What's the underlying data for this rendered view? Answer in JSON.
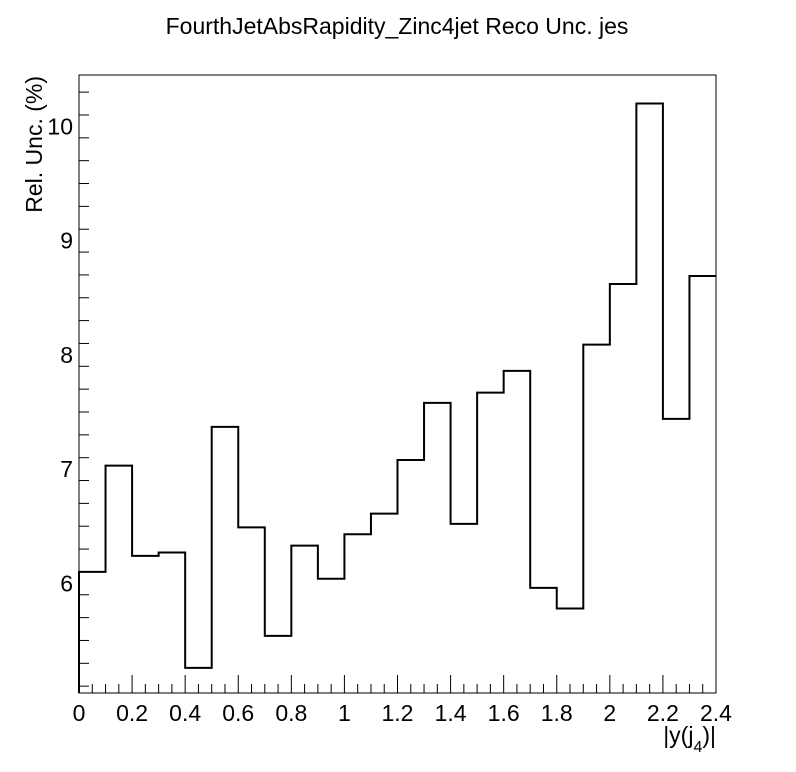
{
  "chart_data": {
    "type": "step-histogram",
    "title": "FourthJetAbsRapidity_Zinc4jet Reco Unc. jes",
    "xlabel": "|y(j4)|",
    "xlabel_parts": {
      "before": "|y(j",
      "sub": "4",
      "after": ")|"
    },
    "ylabel": "Rel. Unc. (%)",
    "xlim": [
      0,
      2.4
    ],
    "ylim": [
      5.04,
      10.45
    ],
    "x_ticks": [
      0,
      0.2,
      0.4,
      0.6,
      0.8,
      1,
      1.2,
      1.4,
      1.6,
      1.8,
      2,
      2.2,
      2.4
    ],
    "x_tick_labels": [
      "0",
      "0.2",
      "0.4",
      "0.6",
      "0.8",
      "1",
      "1.2",
      "1.4",
      "1.6",
      "1.8",
      "2",
      "2.2",
      "2.4"
    ],
    "y_ticks": [
      6,
      7,
      8,
      9,
      10
    ],
    "y_tick_labels": [
      "6",
      "7",
      "8",
      "9",
      "10"
    ],
    "bin_edges": [
      0,
      0.1,
      0.2,
      0.3,
      0.4,
      0.5,
      0.6,
      0.7,
      0.8,
      0.9,
      1.0,
      1.1,
      1.2,
      1.3,
      1.4,
      1.5,
      1.6,
      1.7,
      1.8,
      1.9,
      2.0,
      2.1,
      2.2,
      2.3,
      2.4
    ],
    "values": [
      6.1,
      7.03,
      6.24,
      6.27,
      5.26,
      7.37,
      6.49,
      5.54,
      6.33,
      6.04,
      6.43,
      6.61,
      7.08,
      7.58,
      6.52,
      7.67,
      7.86,
      5.96,
      5.78,
      8.09,
      8.62,
      10.2,
      7.44,
      8.69
    ],
    "grid": false,
    "legend": "none",
    "line_color": "#000000"
  }
}
